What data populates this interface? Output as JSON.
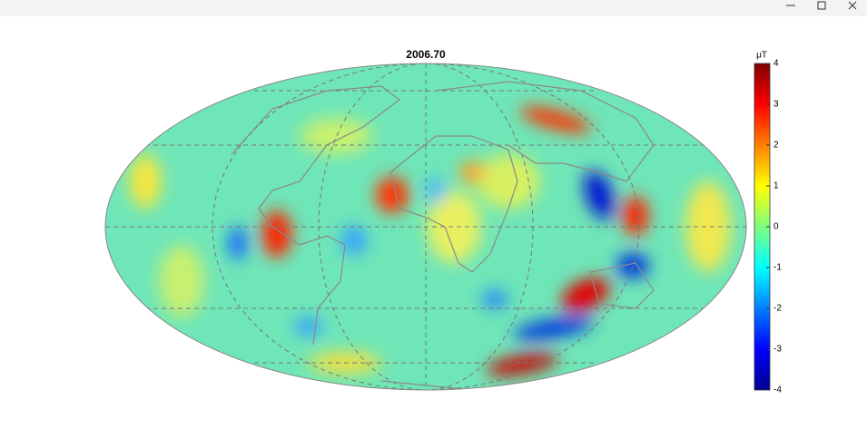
{
  "title": "2006.70",
  "colorbar": {
    "label": "μT",
    "lim": [
      -4,
      4
    ],
    "ticks": [
      -4,
      -3,
      -2,
      -1,
      0,
      1,
      2,
      3,
      4
    ]
  }
}
